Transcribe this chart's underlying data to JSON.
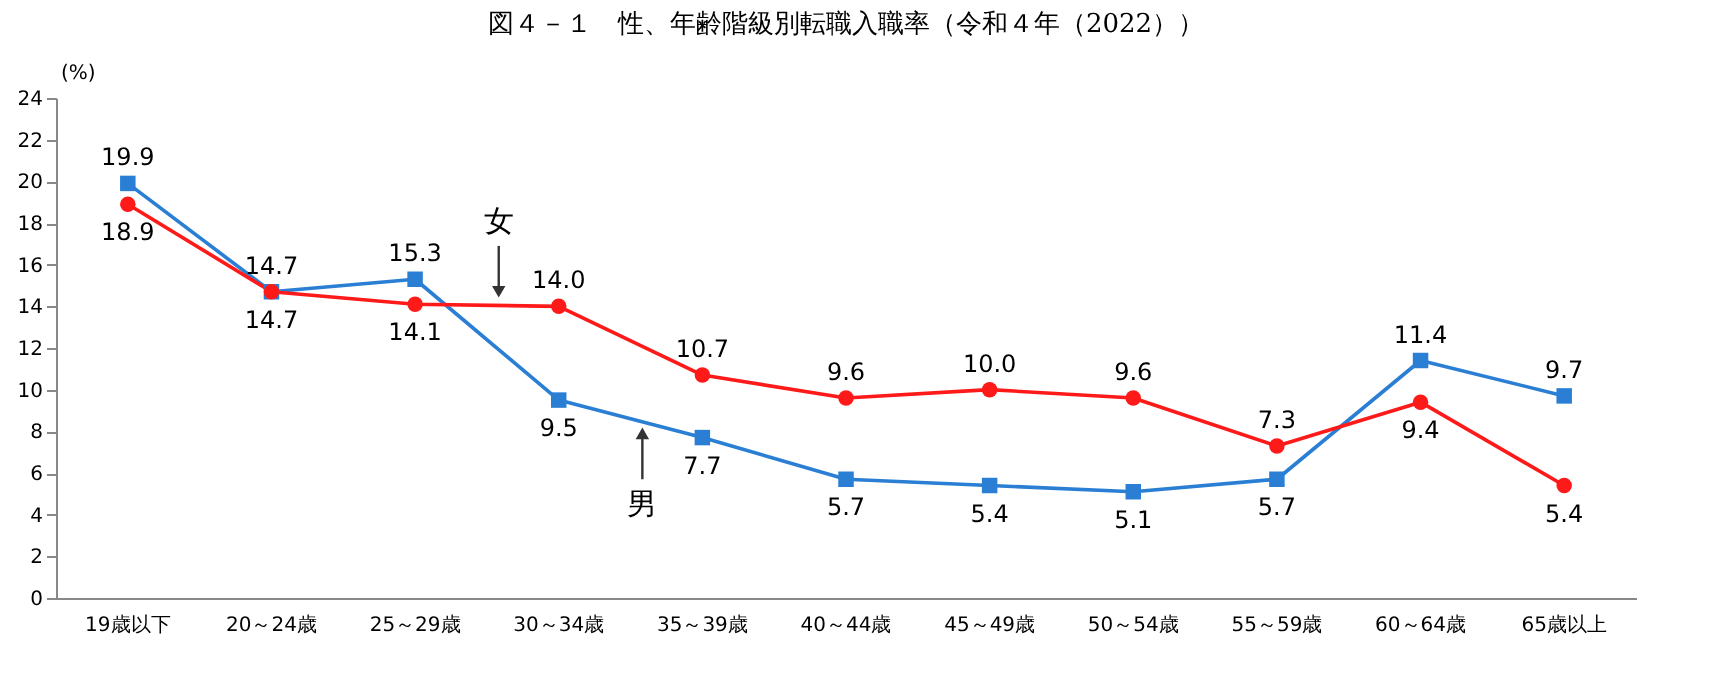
{
  "chart_data": {
    "type": "line",
    "title": "図４－１　性、年齢階級別転職入職率（令和４年（2022））",
    "ylabel": "(%)",
    "categories": [
      "19歳以下",
      "20～24歳",
      "25～29歳",
      "30～34歳",
      "35～39歳",
      "40～44歳",
      "45～49歳",
      "50～54歳",
      "55～59歳",
      "60～64歳",
      "65歳以上"
    ],
    "series": [
      {
        "color": "#2a7fd4",
        "marker": "square",
        "values": [
          19.9,
          14.7,
          15.3,
          9.5,
          7.7,
          5.7,
          5.4,
          5.1,
          5.7,
          11.4,
          9.7
        ],
        "value_labels": [
          "19.9",
          "14.7",
          "15.3",
          "9.5",
          "7.7",
          "5.7",
          "5.4",
          "5.1",
          "5.7",
          "11.4",
          "9.7"
        ]
      },
      {
        "color": "#ff1a1a",
        "marker": "circle",
        "values": [
          18.9,
          14.7,
          14.1,
          14.0,
          10.7,
          9.6,
          10.0,
          9.6,
          7.3,
          9.4,
          5.4
        ],
        "value_labels": [
          "18.9",
          "14.7",
          "14.1",
          "14.0",
          "10.7",
          "9.6",
          "10.0",
          "9.6",
          "7.3",
          "9.4",
          "5.4"
        ]
      }
    ],
    "annotations": [
      {
        "text": "女",
        "x": "30～34歳",
        "y": 14.3
      },
      {
        "text": "男",
        "x": "35～39歳",
        "y": 8.3
      }
    ],
    "ylim": [
      0,
      24
    ],
    "yticks": [
      0,
      2,
      4,
      6,
      8,
      10,
      12,
      14,
      16,
      18,
      20,
      22,
      24
    ],
    "grid": false,
    "legend": false
  }
}
